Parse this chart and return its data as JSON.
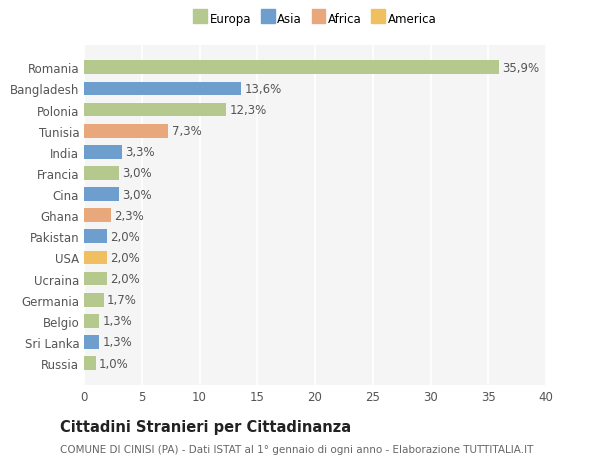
{
  "categories": [
    "Romania",
    "Bangladesh",
    "Polonia",
    "Tunisia",
    "India",
    "Francia",
    "Cina",
    "Ghana",
    "Pakistan",
    "USA",
    "Ucraina",
    "Germania",
    "Belgio",
    "Sri Lanka",
    "Russia"
  ],
  "values": [
    35.9,
    13.6,
    12.3,
    7.3,
    3.3,
    3.0,
    3.0,
    2.3,
    2.0,
    2.0,
    2.0,
    1.7,
    1.3,
    1.3,
    1.0
  ],
  "labels": [
    "35,9%",
    "13,6%",
    "12,3%",
    "7,3%",
    "3,3%",
    "3,0%",
    "3,0%",
    "2,3%",
    "2,0%",
    "2,0%",
    "2,0%",
    "1,7%",
    "1,3%",
    "1,3%",
    "1,0%"
  ],
  "colors": [
    "#b5c98e",
    "#6d9ecd",
    "#b5c98e",
    "#e8a87c",
    "#6d9ecd",
    "#b5c98e",
    "#6d9ecd",
    "#e8a87c",
    "#6d9ecd",
    "#f0c060",
    "#b5c98e",
    "#b5c98e",
    "#b5c98e",
    "#6d9ecd",
    "#b5c98e"
  ],
  "legend": [
    {
      "label": "Europa",
      "color": "#b5c98e"
    },
    {
      "label": "Asia",
      "color": "#6d9ecd"
    },
    {
      "label": "Africa",
      "color": "#e8a87c"
    },
    {
      "label": "America",
      "color": "#f0c060"
    }
  ],
  "xlim": [
    0,
    40
  ],
  "xticks": [
    0,
    5,
    10,
    15,
    20,
    25,
    30,
    35,
    40
  ],
  "title": "Cittadini Stranieri per Cittadinanza",
  "subtitle": "COMUNE DI CINISI (PA) - Dati ISTAT al 1° gennaio di ogni anno - Elaborazione TUTTITALIA.IT",
  "background_color": "#ffffff",
  "plot_bg_color": "#f5f5f5",
  "grid_color": "#ffffff",
  "bar_height": 0.65,
  "label_fontsize": 8.5,
  "tick_fontsize": 8.5,
  "title_fontsize": 10.5,
  "subtitle_fontsize": 7.5
}
